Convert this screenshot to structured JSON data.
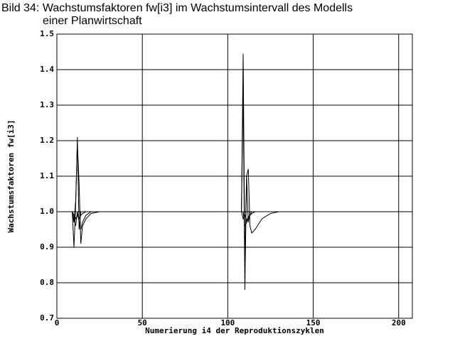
{
  "chart_data": {
    "type": "line",
    "title": "Bild 34: Wachstumsfaktoren fw[i3] im Wachstumsintervall des Modells",
    "subtitle": "einer Planwirtschaft",
    "y_label": "Wachstumsfaktoren fw[i3]",
    "x_label": "Numerierung i4 der Reproduktionszyklen",
    "color": "#000000",
    "grid": true,
    "x": [
      9,
      10,
      11,
      12,
      13,
      14,
      15,
      17,
      20,
      25,
      30,
      60,
      108,
      109,
      110,
      111,
      112,
      113,
      114,
      116,
      120,
      125,
      130
    ],
    "series": [
      {
        "values": [
          1.0,
          0.9,
          1.02,
          1.21,
          0.95,
          1.0,
          1.0,
          1.0,
          1.0,
          1.0,
          1.0,
          1.0,
          1.0,
          1.34,
          0.78,
          1.1,
          0.97,
          1.0,
          1.0,
          1.0,
          1.0,
          1.0,
          1.0
        ]
      },
      {
        "values": [
          1.0,
          0.97,
          1.03,
          1.19,
          1.08,
          0.91,
          0.96,
          0.98,
          0.995,
          1.0,
          1.0,
          null,
          1.0,
          1.445,
          0.86,
          1.1,
          1.12,
          0.96,
          0.94,
          0.95,
          0.98,
          0.995,
          1.0
        ]
      },
      {
        "values": [
          1.0,
          0.98,
          0.96,
          1.0,
          0.97,
          0.95,
          0.97,
          0.99,
          1.0,
          1.0,
          1.0,
          null,
          1.0,
          1.0,
          0.96,
          0.97,
          0.98,
          0.99,
          1.0,
          1.0,
          1.0,
          null,
          null
        ]
      },
      {
        "values": [
          1.0,
          0.99,
          0.98,
          0.99,
          0.98,
          0.99,
          0.995,
          1.0,
          1.0,
          1.0,
          null,
          null,
          1.0,
          0.98,
          0.99,
          0.975,
          0.985,
          0.99,
          0.995,
          1.0,
          1.0,
          null,
          null
        ]
      }
    ],
    "xlim": [
      0,
      208
    ],
    "xticks": [
      0,
      50,
      100,
      150,
      200
    ],
    "ylim": [
      0.7,
      1.5
    ],
    "yticks": [
      0.7,
      0.8,
      0.9,
      {
        "value": 1,
        "label": "1.0"
      },
      1.1,
      1.2,
      1.3,
      1.4,
      1.5
    ]
  }
}
